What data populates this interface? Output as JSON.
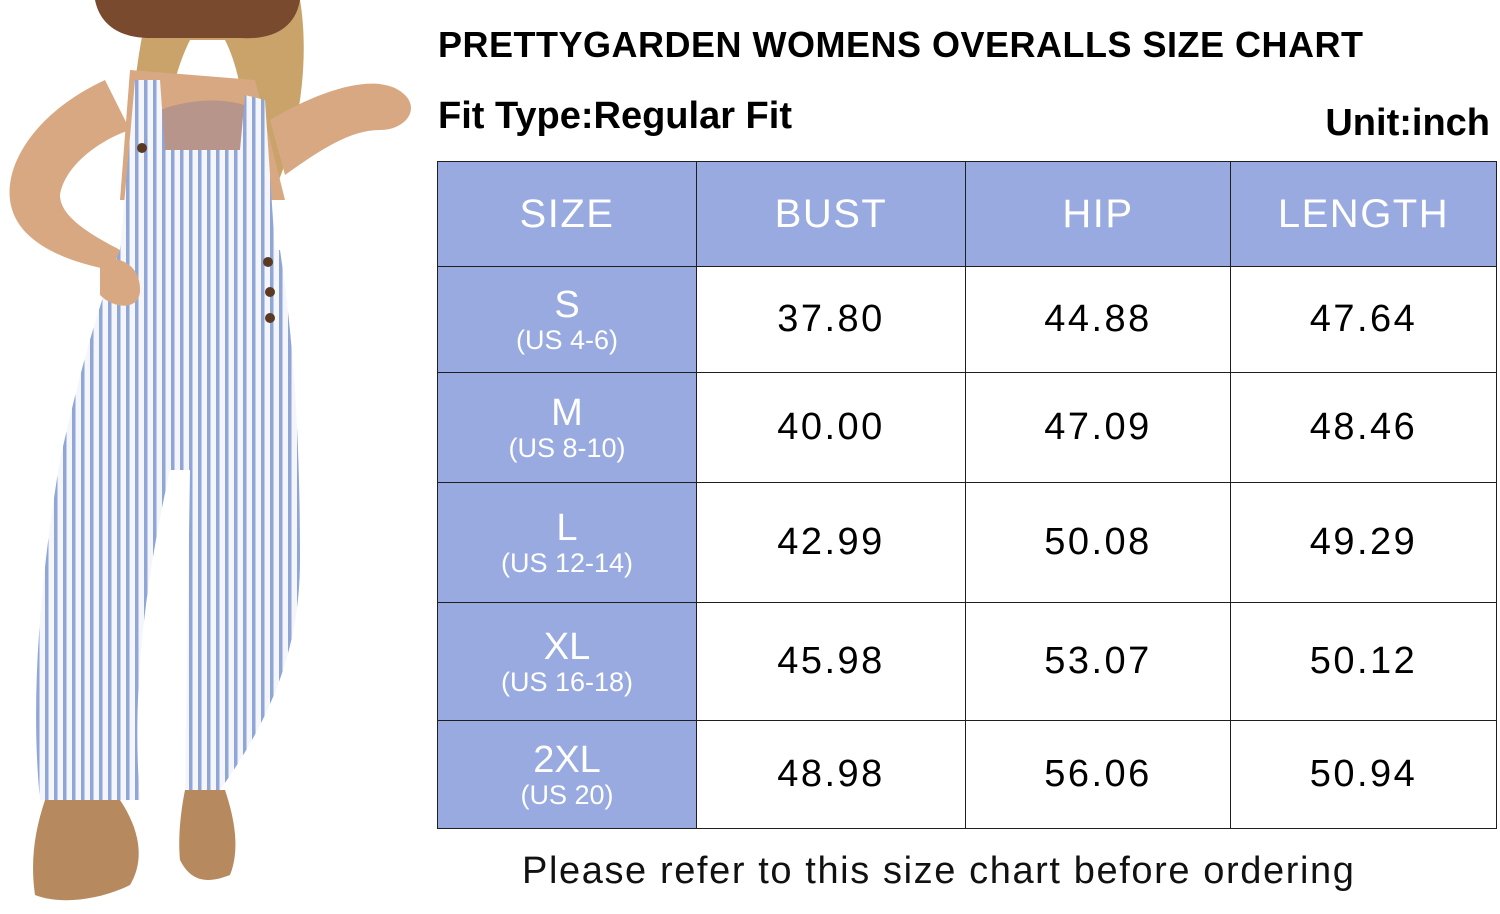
{
  "title": "PRETTYGARDEN WOMENS OVERALLS SIZE CHART",
  "fit_type": "Fit Type:Regular Fit",
  "unit": "Unit:inch",
  "table": {
    "headers": [
      "SIZE",
      "BUST",
      "HIP",
      "LENGTH"
    ],
    "rows": [
      {
        "size": "S",
        "us": "(US 4-6)",
        "bust": "37.80",
        "hip": "44.88",
        "length": "47.64"
      },
      {
        "size": "M",
        "us": "(US 8-10)",
        "bust": "40.00",
        "hip": "47.09",
        "length": "48.46"
      },
      {
        "size": "L",
        "us": "(US 12-14)",
        "bust": "42.99",
        "hip": "50.08",
        "length": "49.29"
      },
      {
        "size": "XL",
        "us": "(US 16-18)",
        "bust": "45.98",
        "hip": "53.07",
        "length": "50.12"
      },
      {
        "size": "2XL",
        "us": "(US 20)",
        "bust": "48.98",
        "hip": "56.06",
        "length": "50.94"
      }
    ]
  },
  "footer": "Please refer to this size chart before ordering",
  "colors": {
    "header_bg": "#98aae0",
    "stripe_blue": "#8fa6d6",
    "hat": "#7a4a2e"
  }
}
